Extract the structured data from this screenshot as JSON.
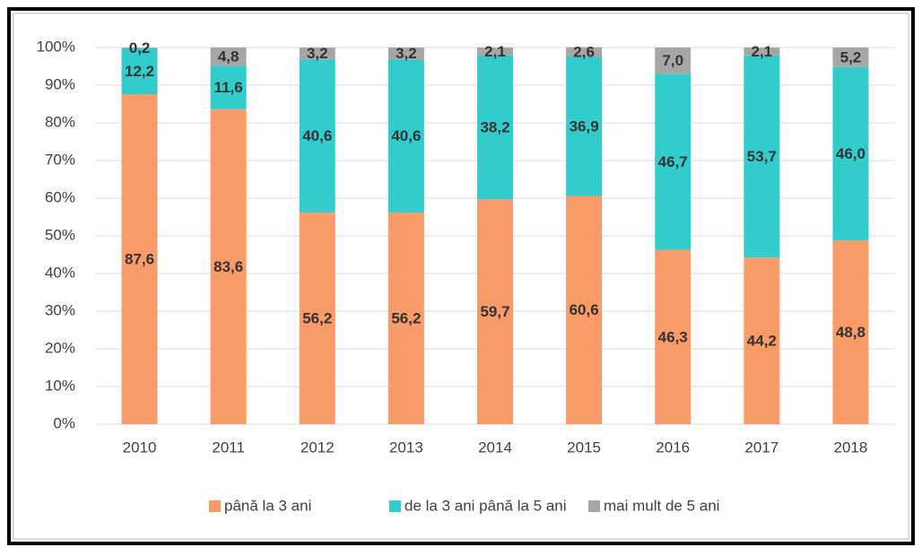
{
  "chart_data": {
    "type": "stacked_bar",
    "categories": [
      "2010",
      "2011",
      "2012",
      "2013",
      "2014",
      "2015",
      "2016",
      "2017",
      "2018"
    ],
    "series": [
      {
        "name": "până la 3 ani",
        "color": "#f99b68",
        "values": [
          87.6,
          83.6,
          56.2,
          56.2,
          59.7,
          60.6,
          46.3,
          44.2,
          48.8
        ],
        "value_labels": [
          "87,6",
          "83,6",
          "56,2",
          "56,2",
          "59,7",
          "60,6",
          "46,3",
          "44,2",
          "48,8"
        ]
      },
      {
        "name": "de la 3 ani până la 5 ani",
        "color": "#33cccc",
        "values": [
          12.2,
          11.6,
          40.6,
          40.6,
          38.2,
          36.9,
          46.7,
          53.7,
          46.0
        ],
        "value_labels": [
          "12,2",
          "11,6",
          "40,6",
          "40,6",
          "38,2",
          "36,9",
          "46,7",
          "53,7",
          "46,0"
        ]
      },
      {
        "name": "mai mult de 5 ani",
        "color": "#a6a6a6",
        "values": [
          0.2,
          4.8,
          3.2,
          3.2,
          2.1,
          2.6,
          7.0,
          2.1,
          5.2
        ],
        "value_labels": [
          "0,2",
          "4,8",
          "3,2",
          "3,2",
          "2,1",
          "2,6",
          "7,0",
          "2,1",
          "5,2"
        ]
      }
    ],
    "ylim": [
      0,
      100
    ],
    "yticks": [
      {
        "value": 0,
        "label": "0%"
      },
      {
        "value": 10,
        "label": "10%"
      },
      {
        "value": 20,
        "label": "20%"
      },
      {
        "value": 30,
        "label": "30%"
      },
      {
        "value": 40,
        "label": "40%"
      },
      {
        "value": 50,
        "label": "50%"
      },
      {
        "value": 60,
        "label": "60%"
      },
      {
        "value": 70,
        "label": "70%"
      },
      {
        "value": 80,
        "label": "80%"
      },
      {
        "value": 90,
        "label": "90%"
      },
      {
        "value": 100,
        "label": "100%"
      }
    ],
    "grid": true,
    "legend": "bottom"
  }
}
